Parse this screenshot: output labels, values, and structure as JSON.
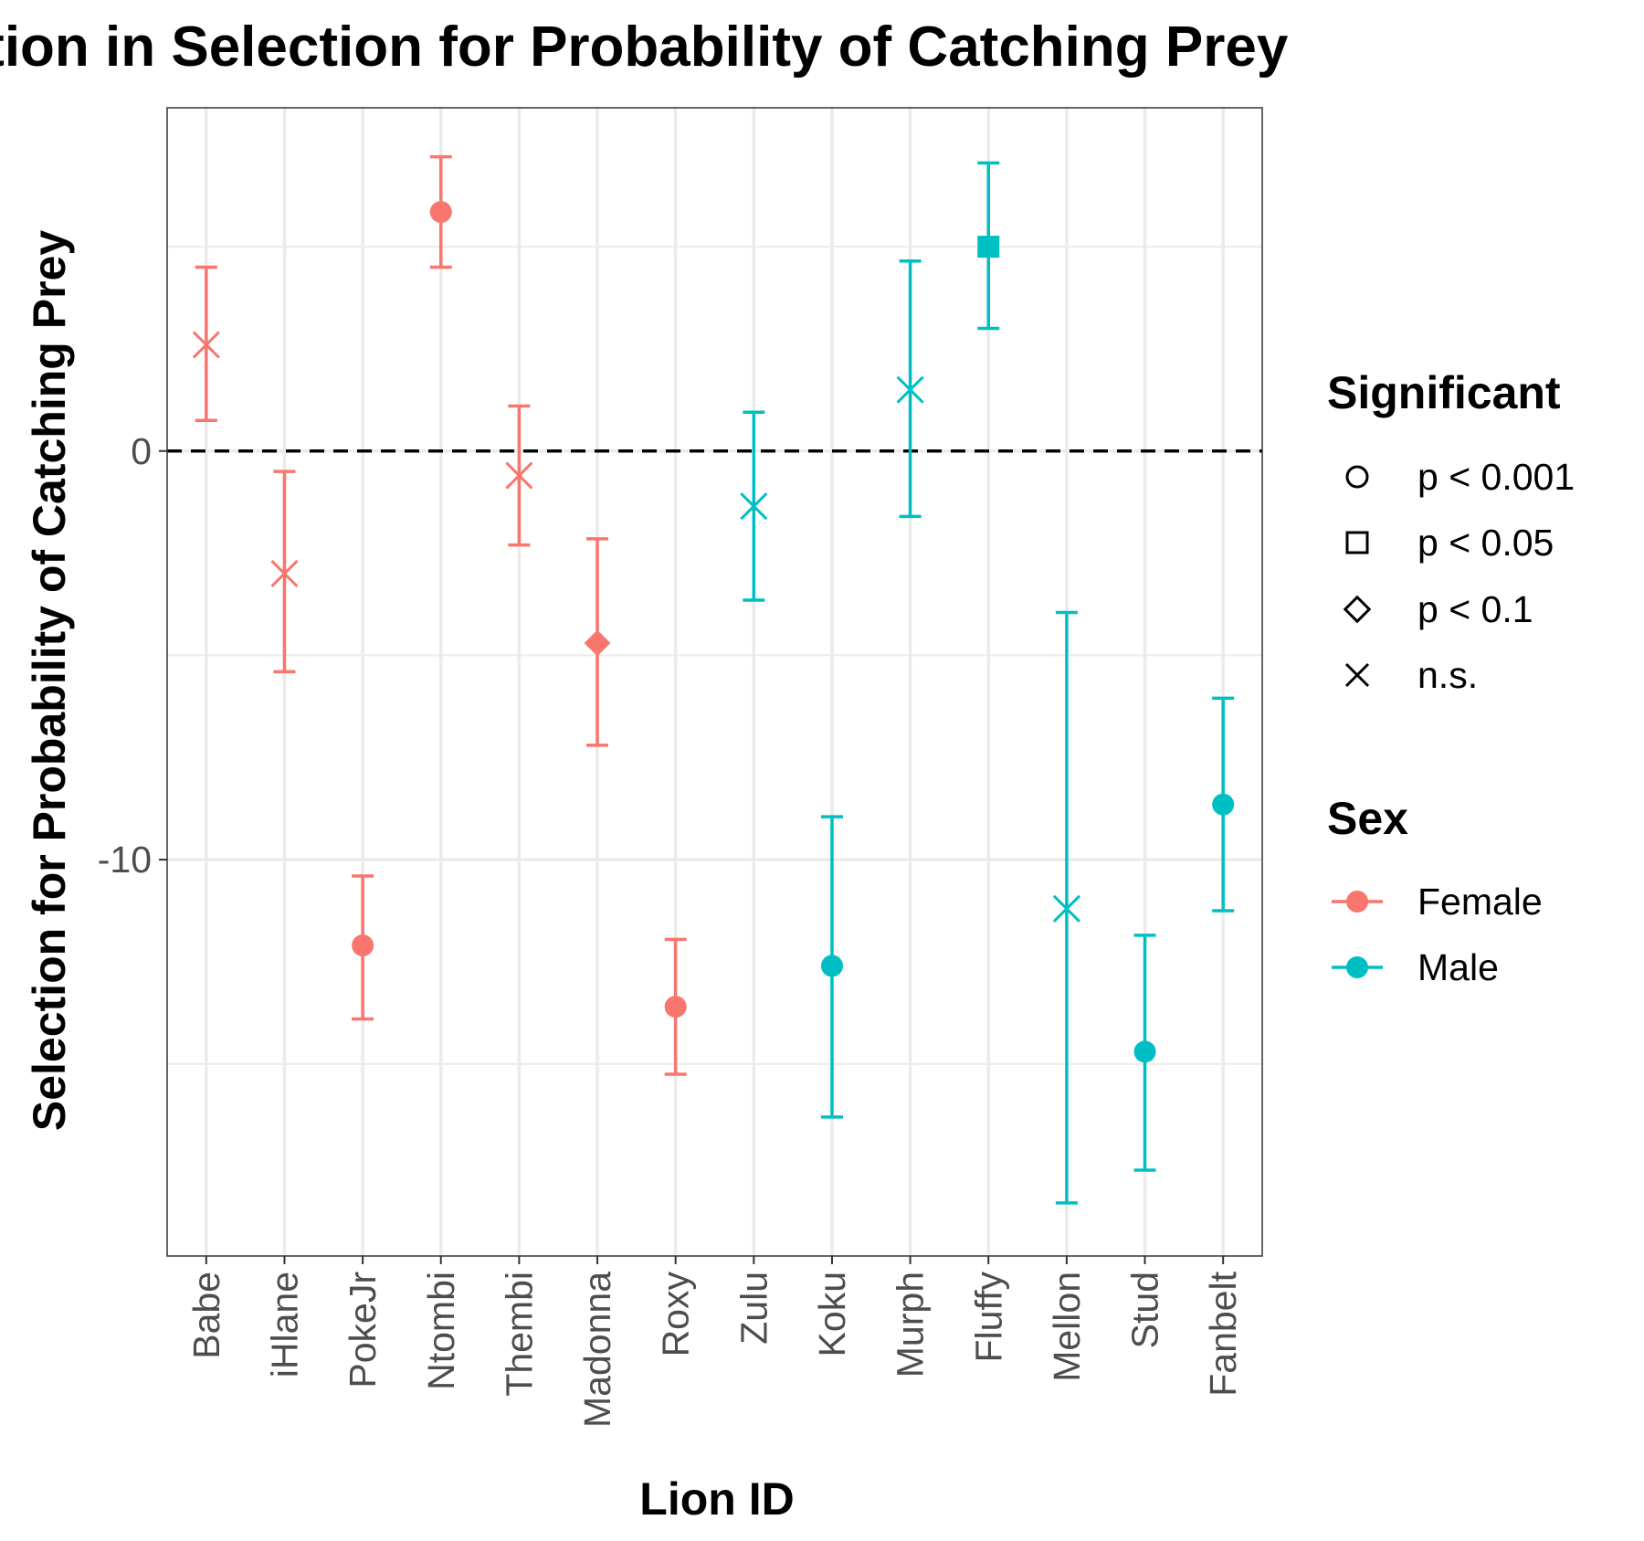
{
  "chart_data": {
    "type": "scatter",
    "title": "ation in Selection for Probability of Catching Prey",
    "xlabel": "Lion ID",
    "ylabel": "Selection for Probability of Catching Prey",
    "ylim": [
      -19.7,
      8.4
    ],
    "yticks": [
      0,
      -10
    ],
    "ytick_labels": [
      "0",
      "-10"
    ],
    "grid": true,
    "reference_line": {
      "y": 0,
      "style": "dashed"
    },
    "categories": [
      "Babe",
      "iHlane",
      "PokeJr",
      "Ntombi",
      "Thembi",
      "Madonna",
      "Roxy",
      "Zulu",
      "Koku",
      "Murph",
      "Fluffy",
      "Mellon",
      "Stud",
      "Fanbelt"
    ],
    "points": [
      {
        "id": "Babe",
        "sex": "Female",
        "significant": "n.s.",
        "y": 2.6,
        "lo": 0.75,
        "hi": 4.5
      },
      {
        "id": "iHlane",
        "sex": "Female",
        "significant": "n.s.",
        "y": -3.0,
        "lo": -5.4,
        "hi": -0.5
      },
      {
        "id": "PokeJr",
        "sex": "Female",
        "significant": "p < 0.001",
        "y": -12.1,
        "lo": -13.9,
        "hi": -10.4
      },
      {
        "id": "Ntombi",
        "sex": "Female",
        "significant": "p < 0.001",
        "y": 5.85,
        "lo": 4.5,
        "hi": 7.2
      },
      {
        "id": "Thembi",
        "sex": "Female",
        "significant": "n.s.",
        "y": -0.6,
        "lo": -2.3,
        "hi": 1.1
      },
      {
        "id": "Madonna",
        "sex": "Female",
        "significant": "p < 0.1",
        "y": -4.7,
        "lo": -7.2,
        "hi": -2.15
      },
      {
        "id": "Roxy",
        "sex": "Female",
        "significant": "p < 0.001",
        "y": -13.6,
        "lo": -15.25,
        "hi": -11.95
      },
      {
        "id": "Zulu",
        "sex": "Male",
        "significant": "n.s.",
        "y": -1.35,
        "lo": -3.65,
        "hi": 0.95
      },
      {
        "id": "Koku",
        "sex": "Male",
        "significant": "p < 0.001",
        "y": -12.6,
        "lo": -16.3,
        "hi": -8.95
      },
      {
        "id": "Murph",
        "sex": "Male",
        "significant": "n.s.",
        "y": 1.5,
        "lo": -1.6,
        "hi": 4.65
      },
      {
        "id": "Fluffy",
        "sex": "Male",
        "significant": "p < 0.05",
        "y": 5.0,
        "lo": 3.0,
        "hi": 7.05
      },
      {
        "id": "Mellon",
        "sex": "Male",
        "significant": "n.s.",
        "y": -11.2,
        "lo": -18.4,
        "hi": -3.95
      },
      {
        "id": "Stud",
        "sex": "Male",
        "significant": "p < 0.001",
        "y": -14.7,
        "lo": -17.6,
        "hi": -11.85
      },
      {
        "id": "Fanbelt",
        "sex": "Male",
        "significant": "p < 0.001",
        "y": -8.65,
        "lo": -11.25,
        "hi": -6.05
      }
    ],
    "legend": {
      "placement": "right",
      "shape_title": "Significant",
      "shape_entries": [
        {
          "label": "p < 0.001",
          "shape": "circle"
        },
        {
          "label": "p < 0.05",
          "shape": "square"
        },
        {
          "label": "p < 0.1",
          "shape": "diamond"
        },
        {
          "label": "n.s.",
          "shape": "cross"
        }
      ],
      "color_title": "Sex",
      "color_entries": [
        {
          "label": "Female",
          "color": "#F8766D"
        },
        {
          "label": "Male",
          "color": "#00BFC4"
        }
      ]
    }
  }
}
